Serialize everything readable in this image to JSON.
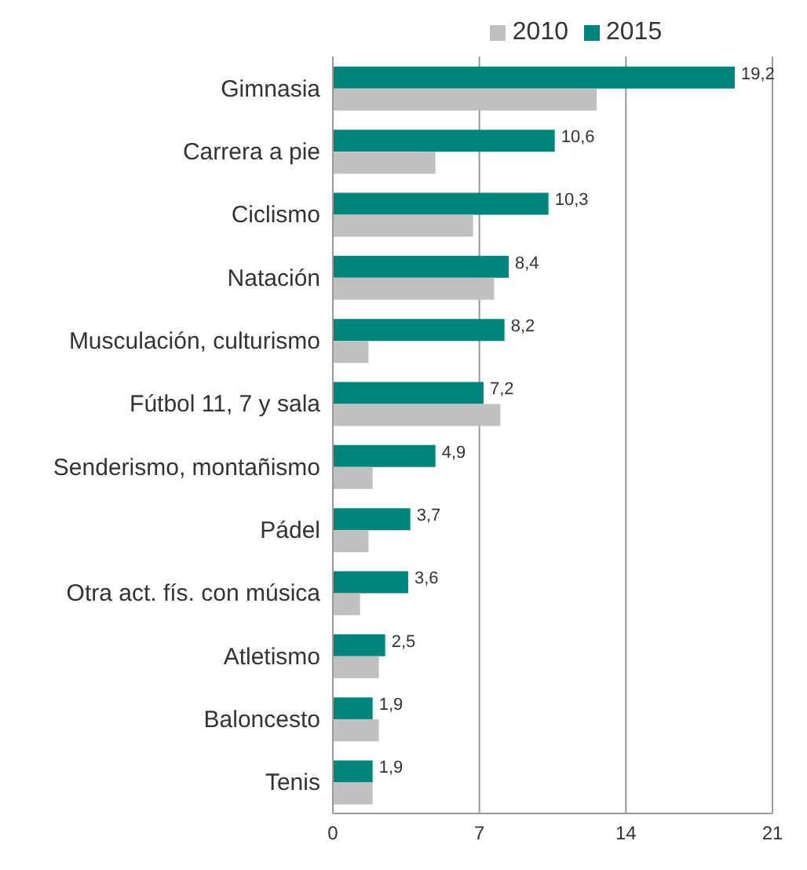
{
  "chart_data": {
    "type": "bar",
    "orientation": "horizontal",
    "categories": [
      "Gimnasia",
      "Carrera a pie",
      "Ciclismo",
      "Natación",
      "Musculación, culturismo",
      "Fútbol 11, 7  y sala",
      "Senderismo, montañismo",
      "Pádel",
      "Otra act. fís. con música",
      "Atletismo",
      "Baloncesto",
      "Tenis"
    ],
    "series": [
      {
        "name": "2015",
        "color": "#00857c",
        "values": [
          19.2,
          10.6,
          10.3,
          8.4,
          8.2,
          7.2,
          4.9,
          3.7,
          3.6,
          2.5,
          1.9,
          1.9
        ],
        "value_labels": [
          "19,2",
          "10,6",
          "10,3",
          "8,4",
          "8,2",
          "7,2",
          "4,9",
          "3,7",
          "3,6",
          "2,5",
          "1,9",
          "1,9"
        ]
      },
      {
        "name": "2010",
        "color": "#c0c0c0",
        "values": [
          12.6,
          4.9,
          6.7,
          7.7,
          1.7,
          8.0,
          1.9,
          1.7,
          1.3,
          2.2,
          2.2,
          1.9
        ]
      }
    ],
    "xlim": [
      0,
      21
    ],
    "xticks": [
      0,
      7,
      14,
      21
    ],
    "grid": "x",
    "legend": "top"
  }
}
